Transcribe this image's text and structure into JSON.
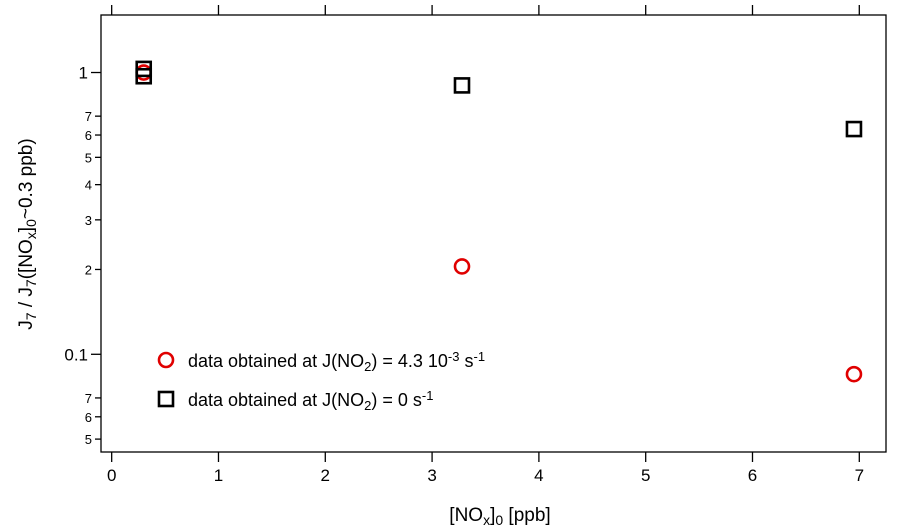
{
  "chart_data": {
    "type": "scatter",
    "x_axis": {
      "label_parts": [
        "[NO",
        "x",
        "]",
        "0",
        "  [ppb]"
      ],
      "range": [
        -0.1,
        7.25
      ],
      "ticks": [
        0,
        1,
        2,
        3,
        4,
        5,
        6,
        7
      ],
      "tick_labels": [
        "0",
        "1",
        "2",
        "3",
        "4",
        "5",
        "6",
        "7"
      ]
    },
    "y_axis": {
      "scale": "log",
      "label_parts": [
        "J",
        "7",
        " / J",
        "7",
        "([NO",
        "x",
        "]",
        "0",
        "~0.3 ppb)"
      ],
      "range": [
        0.045,
        1.6
      ],
      "major_ticks": [
        0.1,
        1
      ],
      "major_labels": [
        "0.1",
        "1"
      ],
      "minor_ticks": [
        0.05,
        0.06,
        0.07,
        0.2,
        0.3,
        0.4,
        0.5,
        0.6,
        0.7
      ],
      "minor_labels": [
        "5",
        "6",
        "7",
        "2",
        "3",
        "4",
        "5",
        "6",
        "7"
      ]
    },
    "series": [
      {
        "marker": "circle",
        "color": "#e00000",
        "x": [
          0.3,
          3.28,
          6.95
        ],
        "y": [
          1.0,
          0.205,
          0.085
        ]
      },
      {
        "marker": "square",
        "color": "#000000",
        "x": [
          0.3,
          0.3,
          3.28,
          6.95
        ],
        "y": [
          1.03,
          0.97,
          0.9,
          0.63
        ]
      }
    ],
    "legend": {
      "placement": "bottom-left",
      "entries": [
        {
          "marker": "circle",
          "color": "#e00000",
          "parts": [
            {
              "t": "data obtained at J(NO",
              "s": "n"
            },
            {
              "t": "2",
              "s": "sub"
            },
            {
              "t": ") = 4.3 10",
              "s": "n"
            },
            {
              "t": "-3",
              "s": "sup"
            },
            {
              "t": " s",
              "s": "n"
            },
            {
              "t": "-1",
              "s": "sup"
            }
          ]
        },
        {
          "marker": "square",
          "color": "#000000",
          "parts": [
            {
              "t": "data obtained at J(NO",
              "s": "n"
            },
            {
              "t": "2",
              "s": "sub"
            },
            {
              "t": ") = 0 s",
              "s": "n"
            },
            {
              "t": "-1",
              "s": "sup"
            }
          ]
        }
      ]
    },
    "grid": false
  }
}
